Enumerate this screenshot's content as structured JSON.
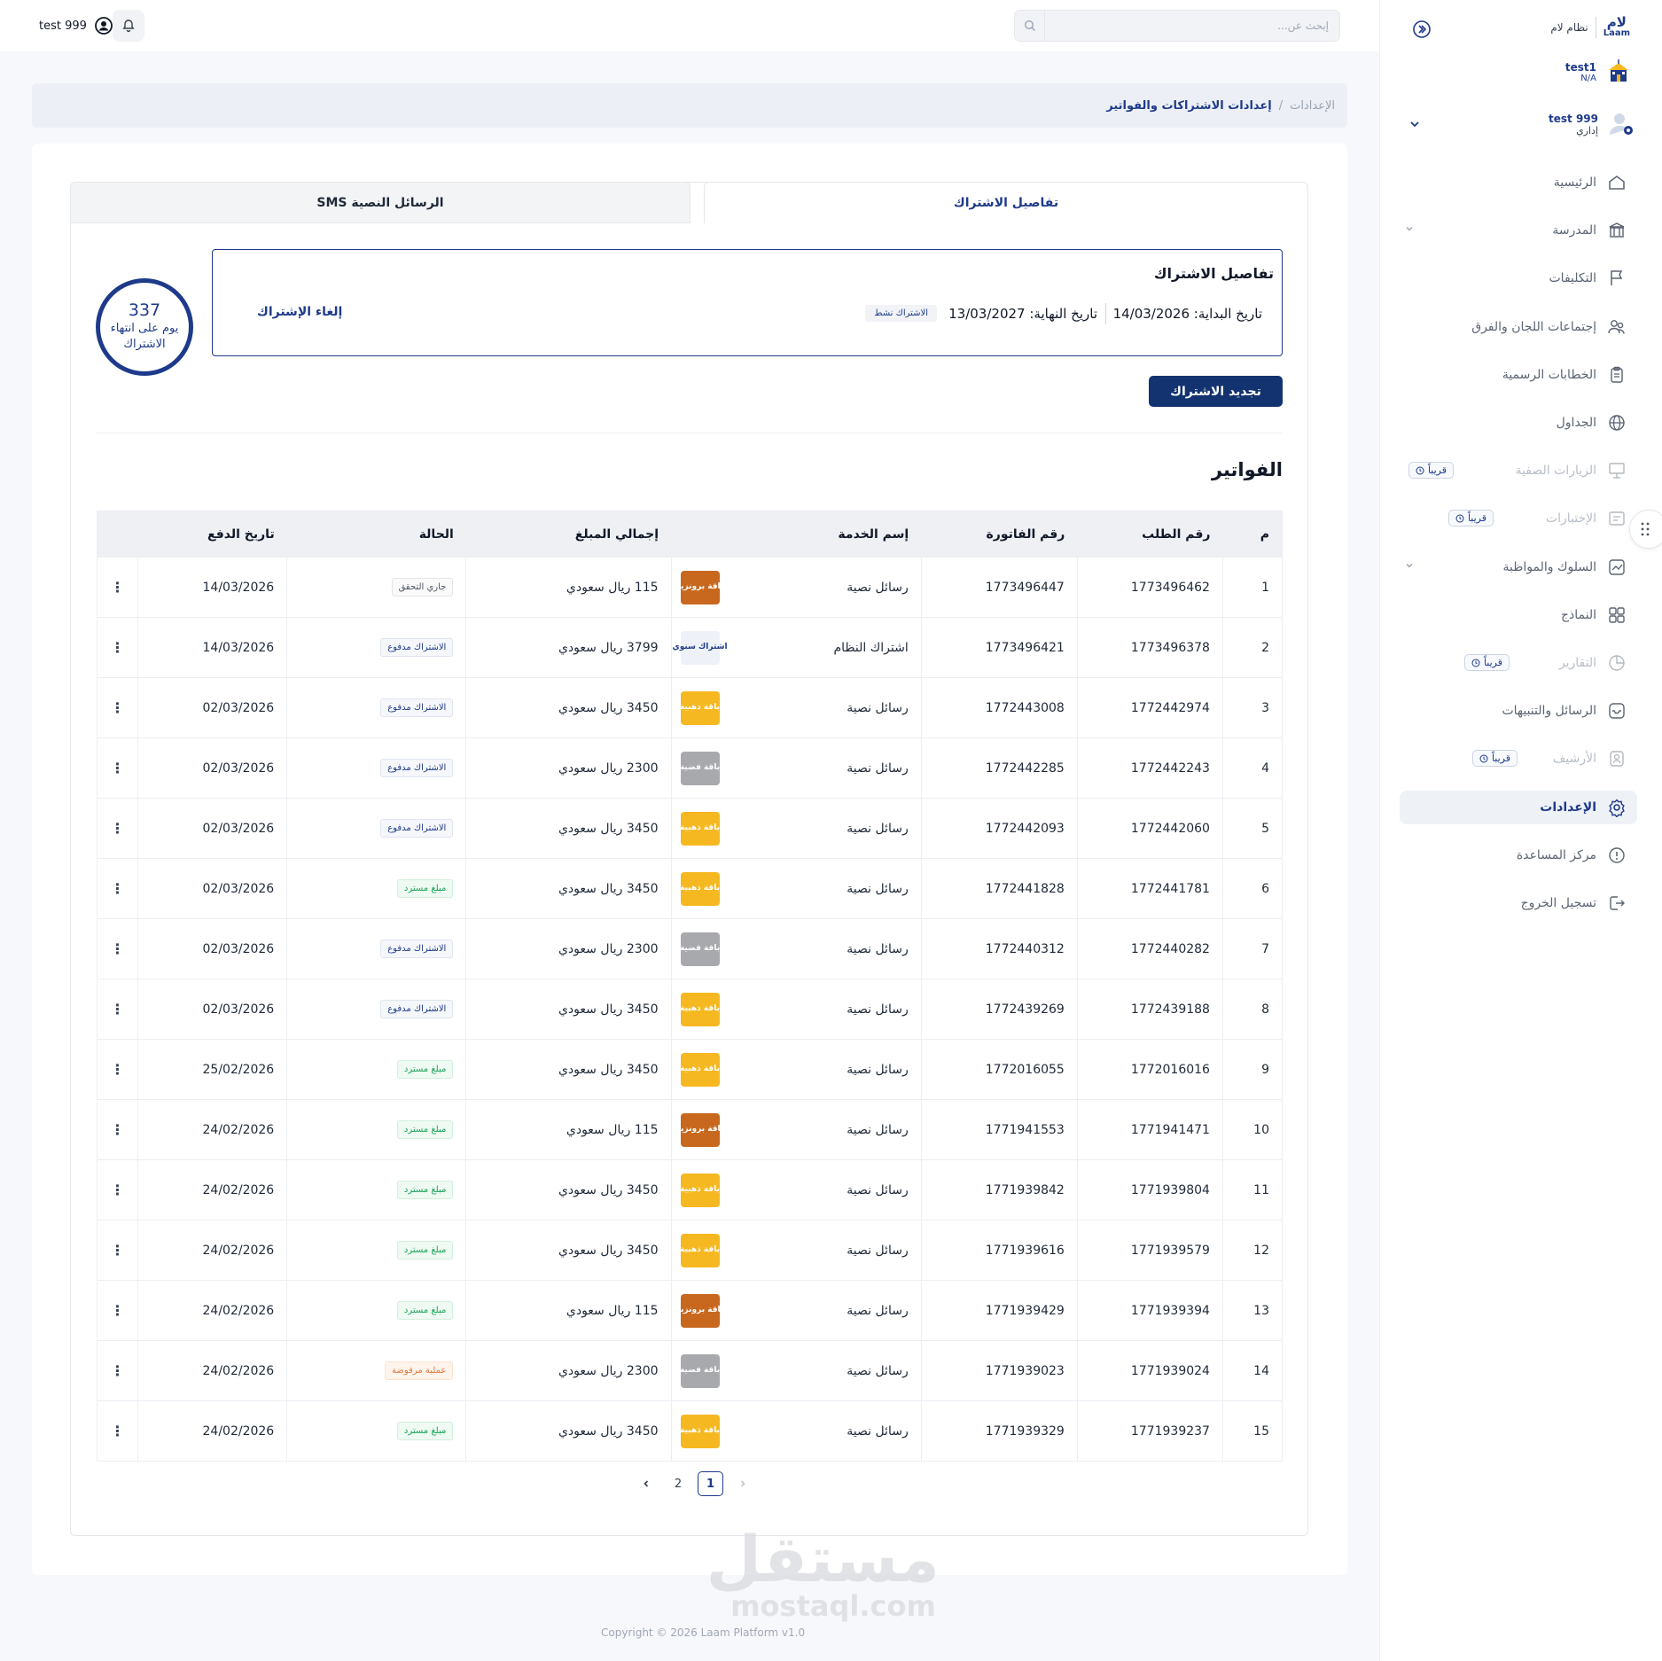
{
  "header": {
    "username": "test 999",
    "search_placeholder": "إبحث عن..."
  },
  "sidebar": {
    "brand_logo_ar": "لام",
    "brand_logo_en": "Laam",
    "brand_name": "نظام لام",
    "school_name": "test1",
    "school_code": "N/A",
    "profile_name": "test 999",
    "profile_role": "إداري",
    "soon_label": "قريباً",
    "items": [
      {
        "label": "الرئيسية",
        "icon": "home-icon",
        "state": "normal"
      },
      {
        "label": "المدرسة",
        "icon": "school-icon",
        "state": "normal",
        "chevron": true
      },
      {
        "label": "التكليفات",
        "icon": "flag-icon",
        "state": "normal"
      },
      {
        "label": "إجتماعات اللجان والفرق",
        "icon": "users-icon",
        "state": "normal"
      },
      {
        "label": "الخطابات الرسمية",
        "icon": "clipboard-icon",
        "state": "normal"
      },
      {
        "label": "الجداول",
        "icon": "globe-icon",
        "state": "normal"
      },
      {
        "label": "الزيارات الصفية",
        "icon": "classroom-icon",
        "state": "disabled",
        "soon": true
      },
      {
        "label": "الإختبارات",
        "icon": "exam-icon",
        "state": "disabled",
        "soon": true
      },
      {
        "label": "السلوك والمواظبة",
        "icon": "chart-icon",
        "state": "normal",
        "chevron": true
      },
      {
        "label": "النماذج",
        "icon": "grid-icon",
        "state": "normal"
      },
      {
        "label": "التقارير",
        "icon": "report-icon",
        "state": "disabled",
        "soon": true
      },
      {
        "label": "الرسائل والتنبيهات",
        "icon": "message-icon",
        "state": "normal"
      },
      {
        "label": "الأرشيف",
        "icon": "archive-icon",
        "state": "disabled",
        "soon": true
      },
      {
        "label": "الإعدادات",
        "icon": "settings-icon",
        "state": "active"
      },
      {
        "label": "مركز المساعدة",
        "icon": "help-icon",
        "state": "normal"
      },
      {
        "label": "تسجيل الخروج",
        "icon": "logout-icon",
        "state": "normal"
      }
    ]
  },
  "breadcrumb": {
    "parent": "الإعدادات",
    "separator": "/",
    "current": "إعدادات الاشتراكات والفواتير"
  },
  "tabs": {
    "subscription": "تفاصيل الاشتراك",
    "sms": "الرسائل النصية SMS"
  },
  "subscription": {
    "title": "تفاصيل الاشتراك",
    "start_text": "تاريخ البداية: 14/03/2026",
    "end_text": "تاريخ النهاية: 13/03/2027",
    "status": "الاشتراك نشط",
    "cancel_label": "إلغاء الإشتراك",
    "days_remaining": "337",
    "days_label": "يوم على انتهاء الاشتراك",
    "renew_label": "تجديد الاشتراك"
  },
  "invoices": {
    "title": "الفواتير",
    "columns": [
      "م",
      "رقم الطلب",
      "رقم الفاتورة",
      "إسم الخدمة",
      "إجمالي المبلغ",
      "الحالة",
      "تاريخ الدفع"
    ],
    "rows": [
      {
        "idx": "1",
        "req": "1773496462",
        "inv": "1773496447",
        "service": "رسائل نصية",
        "pkg": "باقة برونزية",
        "pkg_type": "bronze",
        "amount": "115 ريال سعودي",
        "status": "جاري التحقق",
        "status_type": "verify",
        "date": "14/03/2026"
      },
      {
        "idx": "2",
        "req": "1773496378",
        "inv": "1773496421",
        "service": "اشتراك النظام",
        "pkg": "اشتراك سنوي",
        "pkg_type": "annual",
        "amount": "3799 ريال سعودي",
        "status": "الاشتراك مدفوع",
        "status_type": "paid",
        "date": "14/03/2026"
      },
      {
        "idx": "3",
        "req": "1772442974",
        "inv": "1772443008",
        "service": "رسائل نصية",
        "pkg": "باقة ذهبية",
        "pkg_type": "gold",
        "amount": "3450 ريال سعودي",
        "status": "الاشتراك مدفوع",
        "status_type": "paid",
        "date": "02/03/2026"
      },
      {
        "idx": "4",
        "req": "1772442243",
        "inv": "1772442285",
        "service": "رسائل نصية",
        "pkg": "باقة فضية",
        "pkg_type": "silver",
        "amount": "2300 ريال سعودي",
        "status": "الاشتراك مدفوع",
        "status_type": "paid",
        "date": "02/03/2026"
      },
      {
        "idx": "5",
        "req": "1772442060",
        "inv": "1772442093",
        "service": "رسائل نصية",
        "pkg": "باقة ذهبية",
        "pkg_type": "gold",
        "amount": "3450 ريال سعودي",
        "status": "الاشتراك مدفوع",
        "status_type": "paid",
        "date": "02/03/2026"
      },
      {
        "idx": "6",
        "req": "1772441781",
        "inv": "1772441828",
        "service": "رسائل نصية",
        "pkg": "باقة ذهبية",
        "pkg_type": "gold",
        "amount": "3450 ريال سعودي",
        "status": "مبلغ مسترد",
        "status_type": "refund",
        "date": "02/03/2026"
      },
      {
        "idx": "7",
        "req": "1772440282",
        "inv": "1772440312",
        "service": "رسائل نصية",
        "pkg": "باقة فضية",
        "pkg_type": "silver",
        "amount": "2300 ريال سعودي",
        "status": "الاشتراك مدفوع",
        "status_type": "paid",
        "date": "02/03/2026"
      },
      {
        "idx": "8",
        "req": "1772439188",
        "inv": "1772439269",
        "service": "رسائل نصية",
        "pkg": "باقة ذهبية",
        "pkg_type": "gold",
        "amount": "3450 ريال سعودي",
        "status": "الاشتراك مدفوع",
        "status_type": "paid",
        "date": "02/03/2026"
      },
      {
        "idx": "9",
        "req": "1772016016",
        "inv": "1772016055",
        "service": "رسائل نصية",
        "pkg": "باقة ذهبية",
        "pkg_type": "gold",
        "amount": "3450 ريال سعودي",
        "status": "مبلغ مسترد",
        "status_type": "refund",
        "date": "25/02/2026"
      },
      {
        "idx": "10",
        "req": "1771941471",
        "inv": "1771941553",
        "service": "رسائل نصية",
        "pkg": "باقة برونزية",
        "pkg_type": "bronze",
        "amount": "115 ريال سعودي",
        "status": "مبلغ مسترد",
        "status_type": "refund",
        "date": "24/02/2026"
      },
      {
        "idx": "11",
        "req": "1771939804",
        "inv": "1771939842",
        "service": "رسائل نصية",
        "pkg": "باقة ذهبية",
        "pkg_type": "gold",
        "amount": "3450 ريال سعودي",
        "status": "مبلغ مسترد",
        "status_type": "refund",
        "date": "24/02/2026"
      },
      {
        "idx": "12",
        "req": "1771939579",
        "inv": "1771939616",
        "service": "رسائل نصية",
        "pkg": "باقة ذهبية",
        "pkg_type": "gold",
        "amount": "3450 ريال سعودي",
        "status": "مبلغ مسترد",
        "status_type": "refund",
        "date": "24/02/2026"
      },
      {
        "idx": "13",
        "req": "1771939394",
        "inv": "1771939429",
        "service": "رسائل نصية",
        "pkg": "باقة برونزية",
        "pkg_type": "bronze",
        "amount": "115 ريال سعودي",
        "status": "مبلغ مسترد",
        "status_type": "refund",
        "date": "24/02/2026"
      },
      {
        "idx": "14",
        "req": "1771939024",
        "inv": "1771939023",
        "service": "رسائل نصية",
        "pkg": "باقة فضية",
        "pkg_type": "silver",
        "amount": "2300 ريال سعودي",
        "status": "عملية مرفوضة",
        "status_type": "rejected",
        "date": "24/02/2026"
      },
      {
        "idx": "15",
        "req": "1771939237",
        "inv": "1771939329",
        "service": "رسائل نصية",
        "pkg": "باقة ذهبية",
        "pkg_type": "gold",
        "amount": "3450 ريال سعودي",
        "status": "مبلغ مسترد",
        "status_type": "refund",
        "date": "24/02/2026"
      }
    ],
    "row_menu_glyph": "⋮"
  },
  "pagination": {
    "pages": [
      "1",
      "2"
    ],
    "current": "1"
  },
  "watermark": {
    "ar": "مستقل",
    "en": "mostaql.com"
  },
  "footer": {
    "copyright": "Copyright © 2026 Laam Platform v1.0"
  },
  "colors": {
    "primary": "#1e3a8a",
    "primary_dark": "#12336f",
    "bronze": "#c8681e",
    "gold": "#f6b820",
    "silver": "#a7a9ad",
    "refund_green": "#1aa45a",
    "rejected_orange": "#e07a3e"
  }
}
